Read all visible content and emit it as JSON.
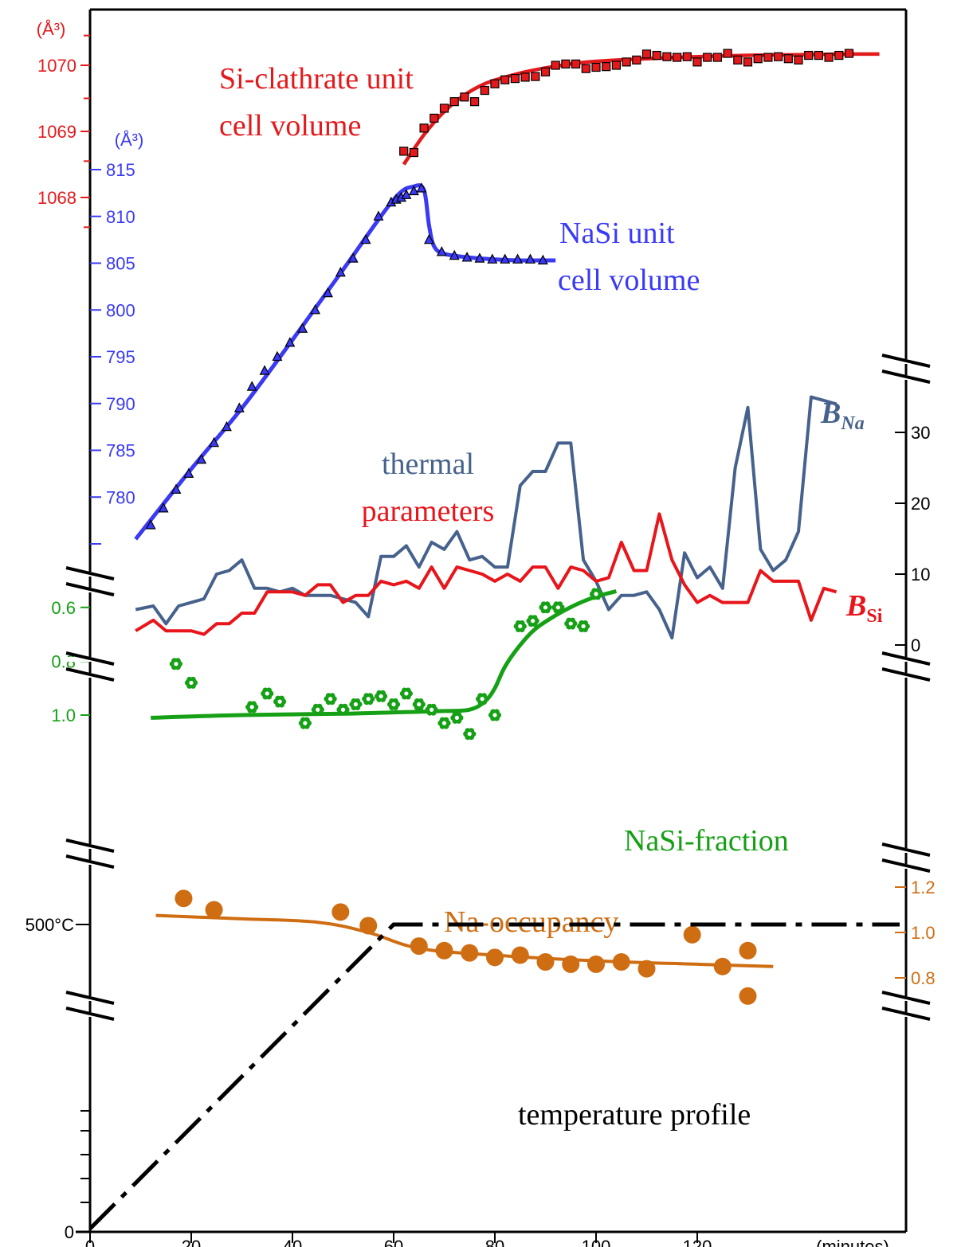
{
  "chart_data": {
    "type": "line",
    "x_axis": {
      "ticks": [
        0,
        20,
        40,
        60,
        80,
        100,
        120
      ],
      "unit_label": "(minutes)",
      "range": [
        0,
        140
      ]
    },
    "colors": {
      "clathrate": "#e31a1c",
      "nasi": "#3a3af5",
      "b_na": "#46628c",
      "b_si": "#e8151b",
      "fraction": "#16a016",
      "occupancy": "#cf6d12",
      "temperature": "#000000",
      "axis": "#000000"
    },
    "panels": [
      {
        "name": "si-clathrate-volume",
        "label_lines": [
          "Si-clathrate unit",
          "cell volume"
        ],
        "unit": "(Å³)",
        "ticks": [
          1068,
          1069,
          1070
        ],
        "minor_ticks": [
          1067.55,
          1068.55,
          1069.5,
          1070.45
        ],
        "points_x": [
          62,
          64,
          66,
          68,
          70,
          72,
          74,
          76,
          78,
          80,
          82,
          84,
          86,
          88,
          90,
          92,
          94,
          96,
          98,
          100,
          102,
          104,
          106,
          108,
          110,
          112,
          114,
          116,
          118,
          120,
          122,
          124,
          126,
          128,
          130,
          132,
          134,
          136,
          138,
          140,
          142,
          144,
          146,
          148,
          150
        ],
        "points_y": [
          1068.7,
          1068.68,
          1069.05,
          1069.2,
          1069.35,
          1069.45,
          1069.52,
          1069.45,
          1069.62,
          1069.72,
          1069.78,
          1069.8,
          1069.82,
          1069.83,
          1069.9,
          1070.0,
          1070.02,
          1070.02,
          1069.95,
          1069.97,
          1069.98,
          1070.0,
          1070.05,
          1070.08,
          1070.17,
          1070.15,
          1070.13,
          1070.12,
          1070.13,
          1070.05,
          1070.12,
          1070.12,
          1070.18,
          1070.08,
          1070.05,
          1070.1,
          1070.12,
          1070.13,
          1070.1,
          1070.08,
          1070.15,
          1070.15,
          1070.12,
          1070.15,
          1070.18
        ],
        "fit_x": [
          62,
          66,
          70,
          74,
          78,
          82,
          86,
          90,
          95,
          100,
          110,
          120,
          130,
          140,
          150,
          156
        ],
        "fit_y": [
          1068.5,
          1068.95,
          1069.3,
          1069.55,
          1069.72,
          1069.82,
          1069.9,
          1069.96,
          1070.02,
          1070.06,
          1070.1,
          1070.13,
          1070.15,
          1070.16,
          1070.17,
          1070.17
        ]
      },
      {
        "name": "nasi-volume",
        "label_lines": [
          "NaSi unit",
          "cell volume"
        ],
        "unit": "(Å³)",
        "ticks": [
          780,
          785,
          790,
          795,
          800,
          805,
          810,
          815
        ],
        "points_x": [
          12,
          14.5,
          17,
          19.5,
          22,
          24.5,
          27,
          29.5,
          32,
          34.5,
          37,
          39.5,
          42,
          44.5,
          47,
          49.5,
          52,
          54.5,
          57,
          59.5,
          60.5,
          61.5,
          62.5,
          64,
          65.5,
          67,
          69.5,
          72,
          74.5,
          77,
          79.5,
          82,
          84.5,
          87,
          89.5
        ],
        "points_y": [
          777.0,
          778.8,
          780.8,
          782.5,
          784.0,
          785.8,
          787.5,
          789.5,
          791.8,
          793.5,
          795.0,
          796.5,
          798.0,
          800.0,
          801.8,
          804.0,
          805.5,
          807.5,
          810.0,
          811.5,
          811.8,
          812.0,
          812.3,
          812.7,
          813.0,
          807.5,
          806.2,
          805.8,
          805.6,
          805.5,
          805.4,
          805.4,
          805.4,
          805.4,
          805.3
        ],
        "fit_x": [
          9,
          20,
          30,
          40,
          50,
          60,
          64,
          66,
          67,
          68,
          70,
          75,
          80,
          85,
          90,
          92
        ],
        "fit_y": [
          775.5,
          783.0,
          789.5,
          796.8,
          804.3,
          811.8,
          813.2,
          812.8,
          809.0,
          806.8,
          806.0,
          805.6,
          805.4,
          805.3,
          805.3,
          805.3
        ]
      },
      {
        "name": "thermal-parameters",
        "label_lines": [
          "thermal",
          "parameters"
        ],
        "ticks": [
          0,
          10,
          20,
          30
        ],
        "b_na": {
          "name": "B_Na",
          "label_main": "B",
          "label_sub": "Na",
          "x": [
            9,
            12.5,
            15,
            17.5,
            20,
            22.5,
            25,
            27.5,
            30,
            32.5,
            35,
            37.5,
            40,
            42.5,
            45,
            47.5,
            50,
            52.5,
            55,
            57.5,
            60,
            62.5,
            65,
            67.5,
            70,
            72.5,
            75,
            77.5,
            80,
            82.5,
            85,
            87.5,
            90,
            92.5,
            95,
            97.5,
            100,
            102.5,
            105,
            107.5,
            110,
            112.5,
            115,
            117.5,
            120,
            122.5,
            125,
            127.5,
            130,
            132.5,
            135,
            137.5,
            140,
            142.5,
            145,
            147.5
          ],
          "y": [
            5,
            5.5,
            3,
            5.5,
            6,
            6.5,
            10,
            10.5,
            12,
            8,
            8,
            7.5,
            8,
            7,
            7,
            7,
            6.5,
            6,
            4,
            12.5,
            12.5,
            14,
            11,
            14.5,
            13.5,
            16,
            12,
            12.5,
            11,
            11,
            22.5,
            24.5,
            24.5,
            28.5,
            28.5,
            12,
            9,
            5,
            7,
            7,
            7.5,
            5,
            1,
            13,
            9.5,
            11,
            8,
            25,
            33.5,
            13.5,
            10.5,
            12,
            16,
            35,
            34.5,
            34
          ]
        },
        "b_si": {
          "name": "B_Si",
          "label_main": "B",
          "label_sub": "Si",
          "x": [
            9,
            12.5,
            15,
            17.5,
            20,
            22.5,
            25,
            27.5,
            30,
            32.5,
            35,
            37.5,
            40,
            42.5,
            45,
            47.5,
            50,
            52.5,
            55,
            57.5,
            60,
            62.5,
            65,
            67.5,
            70,
            72.5,
            75,
            77.5,
            80,
            82.5,
            85,
            87.5,
            90,
            92.5,
            95,
            97.5,
            100,
            102.5,
            105,
            107.5,
            110,
            112.5,
            115,
            117.5,
            120,
            122.5,
            125,
            127.5,
            130,
            132.5,
            135,
            137.5,
            140,
            142.5,
            145,
            147.5
          ],
          "y": [
            2,
            3.5,
            2,
            2,
            2,
            1.5,
            3,
            3,
            4.5,
            4.5,
            7.5,
            7.5,
            7.5,
            7,
            8.5,
            8.5,
            6,
            7,
            7,
            9,
            8.5,
            9,
            8,
            11,
            8,
            11,
            10.5,
            10,
            9,
            10,
            9,
            11,
            11,
            8,
            11,
            10.5,
            9,
            9.5,
            14.5,
            10.5,
            10.5,
            18.5,
            12,
            8.5,
            6,
            7,
            6,
            6,
            6,
            10.5,
            9,
            9,
            9,
            3.5,
            8,
            7.5
          ]
        }
      },
      {
        "name": "nasi-fraction",
        "label_lines": [
          "NaSi-fraction"
        ],
        "ticks_text": [
          "1.0",
          "0.8",
          "0.6"
        ],
        "ticks": [
          1.0,
          0.8,
          0.6
        ],
        "points_x": [
          17,
          20,
          32,
          35,
          37.5,
          42.5,
          45,
          47.5,
          50,
          52.5,
          55,
          57.5,
          60,
          62.5,
          65,
          67.5,
          70,
          72.5,
          75,
          77.5,
          80,
          85,
          87.5,
          90,
          92.5,
          95,
          97.5,
          100
        ],
        "points_y": [
          0.81,
          0.88,
          0.97,
          0.92,
          0.95,
          1.03,
          0.98,
          0.94,
          0.98,
          0.96,
          0.94,
          0.93,
          0.96,
          0.92,
          0.96,
          0.98,
          1.03,
          1.01,
          1.07,
          0.94,
          1.0,
          0.67,
          0.65,
          0.6,
          0.6,
          0.66,
          0.67,
          0.55
        ],
        "fit_x": [
          12,
          30,
          50,
          60,
          70,
          75,
          78,
          80,
          82,
          85,
          88,
          92,
          96,
          100,
          104
        ],
        "fit_y": [
          1.01,
          1.0,
          0.995,
          0.99,
          0.985,
          0.98,
          0.95,
          0.9,
          0.82,
          0.74,
          0.68,
          0.63,
          0.59,
          0.56,
          0.54
        ]
      },
      {
        "name": "na-occupancy",
        "label_lines": [
          "Na-occupancy"
        ],
        "ticks_text": [
          "1.2",
          "1.0",
          "0.8"
        ],
        "ticks": [
          1.2,
          1.0,
          0.8
        ],
        "points_x": [
          18.5,
          24.5,
          49.5,
          55,
          65,
          70,
          75,
          80,
          85,
          90,
          95,
          100,
          105,
          110,
          119,
          125,
          130,
          130
        ],
        "points_y": [
          1.15,
          1.1,
          1.09,
          1.03,
          0.94,
          0.92,
          0.91,
          0.89,
          0.9,
          0.87,
          0.86,
          0.86,
          0.87,
          0.84,
          0.99,
          0.85,
          0.92,
          0.72
        ],
        "fit_x": [
          13,
          30,
          45,
          55,
          65,
          80,
          100,
          120,
          135
        ],
        "fit_y": [
          1.075,
          1.06,
          1.045,
          1.0,
          0.93,
          0.9,
          0.875,
          0.86,
          0.85
        ]
      },
      {
        "name": "temperature-profile",
        "label_lines": [
          "temperature profile"
        ],
        "tick_label_top": "500°C",
        "tick_label_zero": "0",
        "x": [
          0,
          60,
          160
        ],
        "y": [
          0,
          500,
          500
        ]
      }
    ]
  }
}
